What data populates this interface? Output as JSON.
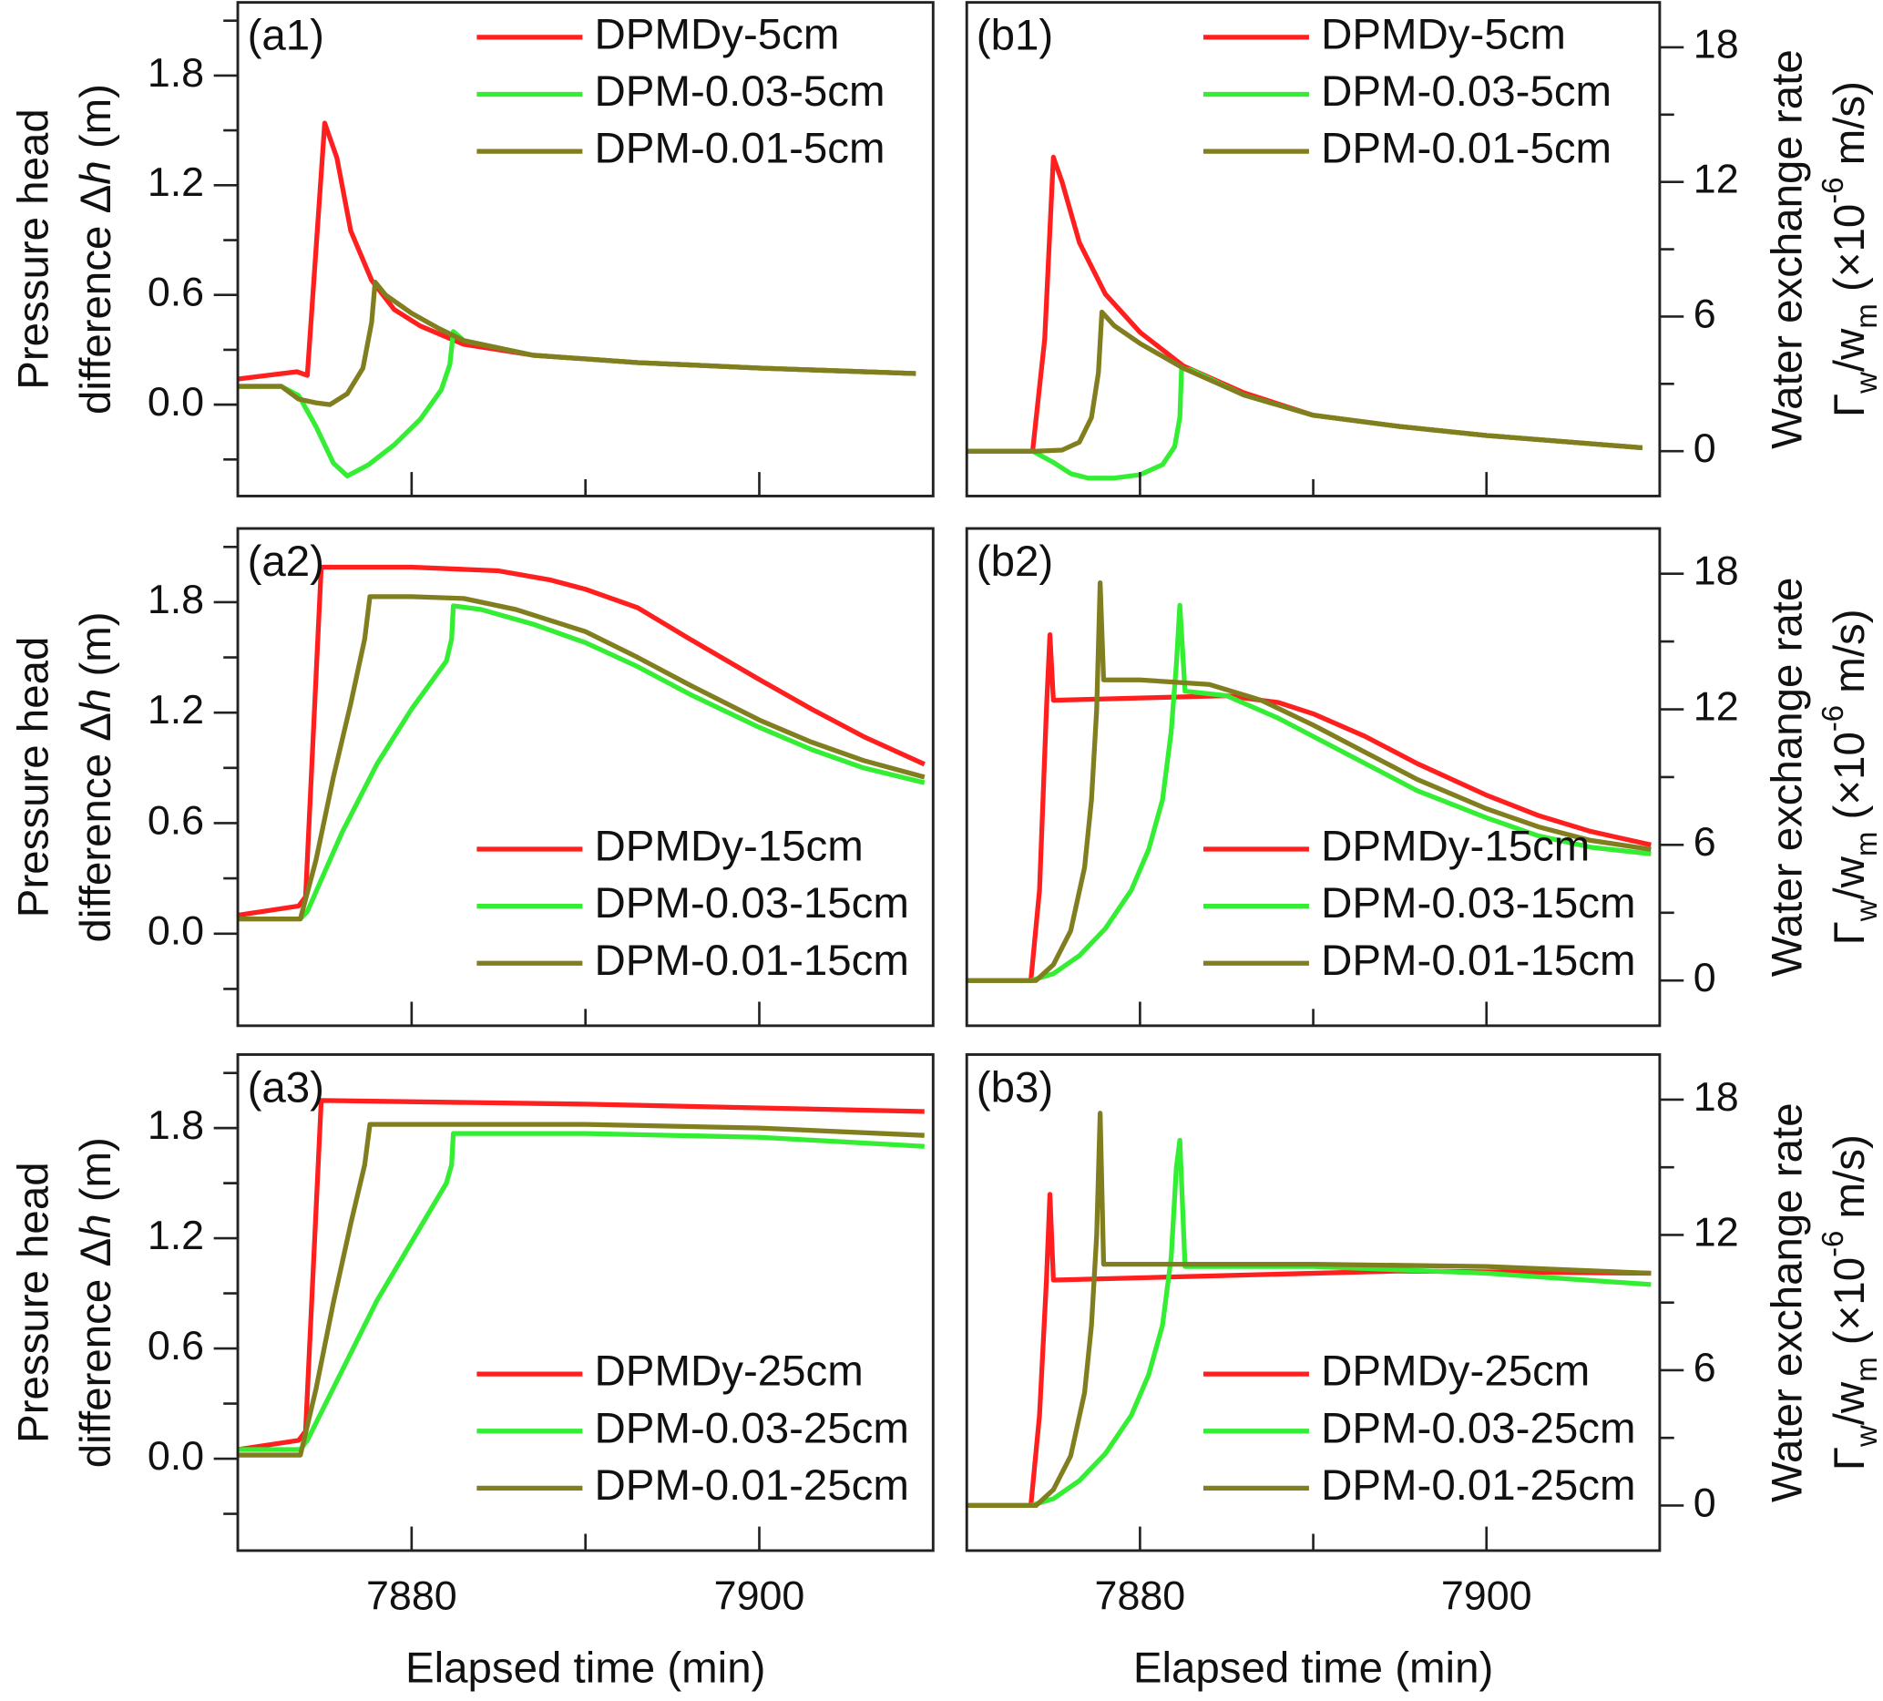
{
  "chart_data": [
    {
      "type": "line",
      "panel_label": "(a1)",
      "ylabel": [
        [
          {
            "text": "Pressure head"
          }
        ],
        [
          {
            "text": "difference Δ"
          },
          {
            "text": "h",
            "style": "italic"
          },
          {
            "text": " (m)"
          }
        ]
      ],
      "yaxis": "left",
      "xlim": [
        7870,
        7910
      ],
      "xticks": [
        7880,
        7900
      ],
      "xminor": [
        7890
      ],
      "xtick_labels": false,
      "ylim": [
        -0.5,
        2.2
      ],
      "yticks": [
        {
          "value": 0,
          "label": "0.0"
        },
        0.6,
        1.2,
        1.8
      ],
      "yminor": [
        -0.3,
        0.3,
        0.9,
        1.5,
        2.1
      ],
      "legend": "upper right",
      "series": [
        {
          "name": "DPMDy-5cm",
          "color": "#ff1f1f",
          "x": [
            7870,
            7873.4,
            7874,
            7875,
            7875.7,
            7876.5,
            7877.7,
            7879,
            7880.5,
            7883,
            7887,
            7893,
            7900,
            7909
          ],
          "values": [
            0.14,
            0.18,
            0.16,
            1.54,
            1.35,
            0.95,
            0.68,
            0.52,
            0.43,
            0.33,
            0.27,
            0.23,
            0.2,
            0.17
          ]
        },
        {
          "name": "DPM-0.03-5cm",
          "color": "#33ee33",
          "x": [
            7870,
            7872.5,
            7873.5,
            7874.5,
            7875.5,
            7876.3,
            7877.5,
            7879,
            7880.5,
            7881.7,
            7882.2,
            7882.4,
            7883,
            7887,
            7893,
            7900,
            7909
          ],
          "values": [
            0.1,
            0.1,
            0.05,
            -0.12,
            -0.32,
            -0.39,
            -0.33,
            -0.22,
            -0.08,
            0.08,
            0.22,
            0.4,
            0.35,
            0.27,
            0.23,
            0.2,
            0.17
          ]
        },
        {
          "name": "DPM-0.01-5cm",
          "color": "#807e1e",
          "x": [
            7870,
            7872.5,
            7873.5,
            7874.5,
            7875.3,
            7876.3,
            7877.2,
            7877.7,
            7877.9,
            7878.5,
            7880,
            7881.5,
            7883,
            7887,
            7893,
            7900,
            7909
          ],
          "values": [
            0.1,
            0.1,
            0.03,
            0.01,
            0.0,
            0.06,
            0.2,
            0.45,
            0.67,
            0.6,
            0.5,
            0.42,
            0.35,
            0.27,
            0.23,
            0.2,
            0.17
          ]
        }
      ]
    },
    {
      "type": "line",
      "panel_label": "(b1)",
      "ylabel": [
        [
          {
            "text": "Water exchange rate"
          }
        ],
        [
          {
            "text": "Γ"
          },
          {
            "text": "w",
            "style": "sub"
          },
          {
            "text": "/w"
          },
          {
            "text": "m",
            "style": "sub"
          },
          {
            "text": " (×10"
          },
          {
            "text": "-6",
            "style": "sup"
          },
          {
            "text": " m/s)"
          }
        ]
      ],
      "yaxis": "right",
      "xlim": [
        7870,
        7910
      ],
      "xticks": [
        7880,
        7900
      ],
      "xminor": [
        7890
      ],
      "xtick_labels": false,
      "ylim": [
        -2,
        20
      ],
      "yticks": [
        0,
        6,
        12,
        18
      ],
      "yminor": [
        3,
        9,
        15
      ],
      "legend": "upper right",
      "series": [
        {
          "name": "DPMDy-5cm",
          "color": "#ff1f1f",
          "x": [
            7870,
            7873.8,
            7874.5,
            7875,
            7875.5,
            7876.5,
            7878,
            7880,
            7882.5,
            7886,
            7890,
            7895,
            7900,
            7909
          ],
          "values": [
            0,
            0,
            5,
            13.1,
            12,
            9.3,
            7,
            5.3,
            3.8,
            2.6,
            1.6,
            1.1,
            0.7,
            0.15
          ]
        },
        {
          "name": "DPM-0.03-5cm",
          "color": "#33ee33",
          "x": [
            7870,
            7873.8,
            7875,
            7876,
            7877,
            7878.5,
            7880,
            7881.3,
            7882,
            7882.3,
            7882.4,
            7883,
            7886,
            7890,
            7895,
            7900,
            7909
          ],
          "values": [
            0,
            0,
            -0.5,
            -1.0,
            -1.2,
            -1.2,
            -1.05,
            -0.6,
            0.2,
            1.5,
            3.7,
            3.6,
            2.5,
            1.6,
            1.1,
            0.7,
            0.15
          ]
        },
        {
          "name": "DPM-0.01-5cm",
          "color": "#807e1e",
          "x": [
            7870,
            7874,
            7875.5,
            7876.5,
            7877.2,
            7877.6,
            7877.8,
            7878.5,
            7880,
            7882.5,
            7886,
            7890,
            7895,
            7900,
            7909
          ],
          "values": [
            0,
            0,
            0.05,
            0.4,
            1.5,
            3.5,
            6.2,
            5.6,
            4.8,
            3.7,
            2.5,
            1.6,
            1.1,
            0.7,
            0.15
          ]
        }
      ]
    },
    {
      "type": "line",
      "panel_label": "(a2)",
      "ylabel": [
        [
          {
            "text": "Pressure head"
          }
        ],
        [
          {
            "text": "difference Δ"
          },
          {
            "text": "h",
            "style": "italic"
          },
          {
            "text": " (m)"
          }
        ]
      ],
      "yaxis": "left",
      "xlim": [
        7870,
        7910
      ],
      "xticks": [
        7880,
        7900
      ],
      "xminor": [
        7890
      ],
      "xtick_labels": false,
      "ylim": [
        -0.5,
        2.2
      ],
      "yticks": [
        {
          "value": 0,
          "label": "0.0"
        },
        0.6,
        1.2,
        1.8
      ],
      "yminor": [
        -0.3,
        0.3,
        0.9,
        1.5,
        2.1
      ],
      "legend": "lower right",
      "series": [
        {
          "name": "DPMDy-15cm",
          "color": "#ff1f1f",
          "x": [
            7870,
            7873.5,
            7873.9,
            7874.8,
            7880,
            7885,
            7888,
            7890,
            7893,
            7896,
            7900,
            7903,
            7906,
            7909.5
          ],
          "values": [
            0.1,
            0.15,
            0.2,
            1.99,
            1.99,
            1.97,
            1.92,
            1.87,
            1.77,
            1.6,
            1.38,
            1.22,
            1.07,
            0.92
          ]
        },
        {
          "name": "DPM-0.03-15cm",
          "color": "#33ee33",
          "x": [
            7870,
            7873.6,
            7874,
            7876,
            7878,
            7880,
            7882,
            7882.3,
            7882.4,
            7884,
            7887,
            7890,
            7893,
            7896,
            7900,
            7903,
            7906,
            7909.5
          ],
          "values": [
            0.08,
            0.08,
            0.12,
            0.55,
            0.92,
            1.22,
            1.48,
            1.6,
            1.78,
            1.76,
            1.68,
            1.58,
            1.45,
            1.3,
            1.12,
            1.0,
            0.9,
            0.82
          ]
        },
        {
          "name": "DPM-0.01-15cm",
          "color": "#807e1e",
          "x": [
            7870,
            7873.6,
            7874.5,
            7875.5,
            7876.5,
            7877.3,
            7877.6,
            7880,
            7883,
            7886,
            7890,
            7893,
            7896,
            7900,
            7903,
            7906,
            7909.5
          ],
          "values": [
            0.08,
            0.08,
            0.4,
            0.85,
            1.25,
            1.6,
            1.83,
            1.83,
            1.82,
            1.76,
            1.64,
            1.5,
            1.35,
            1.16,
            1.04,
            0.94,
            0.85
          ]
        }
      ]
    },
    {
      "type": "line",
      "panel_label": "(b2)",
      "ylabel": [
        [
          {
            "text": "Water exchange rate"
          }
        ],
        [
          {
            "text": "Γ"
          },
          {
            "text": "w",
            "style": "sub"
          },
          {
            "text": "/w"
          },
          {
            "text": "m",
            "style": "sub"
          },
          {
            "text": " (×10"
          },
          {
            "text": "-6",
            "style": "sup"
          },
          {
            "text": " m/s)"
          }
        ]
      ],
      "yaxis": "right",
      "xlim": [
        7870,
        7910
      ],
      "xticks": [
        7880,
        7900
      ],
      "xminor": [
        7890
      ],
      "xtick_labels": false,
      "ylim": [
        -2,
        20
      ],
      "yticks": [
        0,
        6,
        12,
        18
      ],
      "yminor": [
        3,
        9,
        15
      ],
      "legend": "lower right",
      "series": [
        {
          "name": "DPMDy-15cm",
          "color": "#ff1f1f",
          "x": [
            7870,
            7873.7,
            7874.2,
            7874.6,
            7874.8,
            7875.0,
            7880,
            7885,
            7888,
            7890,
            7893,
            7896,
            7900,
            7903,
            7906,
            7909.5
          ],
          "values": [
            0,
            0,
            4,
            12,
            15.3,
            12.4,
            12.5,
            12.6,
            12.3,
            11.8,
            10.8,
            9.6,
            8.2,
            7.3,
            6.6,
            6.0
          ]
        },
        {
          "name": "DPM-0.03-15cm",
          "color": "#33ee33",
          "x": [
            7870,
            7873.7,
            7875,
            7876.5,
            7878,
            7879.5,
            7880.5,
            7881.3,
            7881.8,
            7882.1,
            7882.3,
            7882.6,
            7885,
            7888,
            7890,
            7893,
            7896,
            7900,
            7903,
            7906,
            7909.5
          ],
          "values": [
            0,
            0,
            0.3,
            1.1,
            2.3,
            4.0,
            5.8,
            8,
            11,
            14,
            16.6,
            12.8,
            12.6,
            11.6,
            10.8,
            9.6,
            8.4,
            7.2,
            6.4,
            5.9,
            5.6
          ]
        },
        {
          "name": "DPM-0.01-15cm",
          "color": "#807e1e",
          "x": [
            7870,
            7874,
            7875,
            7876,
            7876.8,
            7877.2,
            7877.5,
            7877.7,
            7877.9,
            7880,
            7884,
            7887,
            7890,
            7893,
            7896,
            7900,
            7903,
            7906,
            7909.5
          ],
          "values": [
            0,
            0,
            0.7,
            2.2,
            5,
            8,
            12,
            17.6,
            13.3,
            13.3,
            13.1,
            12.4,
            11.3,
            10.1,
            8.9,
            7.6,
            6.8,
            6.2,
            5.8
          ]
        }
      ]
    },
    {
      "type": "line",
      "panel_label": "(a3)",
      "ylabel": [
        [
          {
            "text": "Pressure head"
          }
        ],
        [
          {
            "text": "difference Δ"
          },
          {
            "text": "h",
            "style": "italic"
          },
          {
            "text": " (m)"
          }
        ]
      ],
      "xlabel": "Elapsed time (min)",
      "yaxis": "left",
      "xlim": [
        7870,
        7910
      ],
      "xticks": [
        7880,
        7900
      ],
      "xminor": [
        7890
      ],
      "xtick_labels": true,
      "ylim": [
        -0.5,
        2.2
      ],
      "yticks": [
        {
          "value": 0,
          "label": "0.0"
        },
        0.6,
        1.2,
        1.8
      ],
      "yminor": [
        -0.3,
        0.3,
        0.9,
        1.5,
        2.1
      ],
      "legend": "lower right",
      "series": [
        {
          "name": "DPMDy-25cm",
          "color": "#ff1f1f",
          "x": [
            7870,
            7873.5,
            7873.9,
            7874.8,
            7890,
            7909.5
          ],
          "values": [
            0.05,
            0.1,
            0.15,
            1.95,
            1.93,
            1.89
          ]
        },
        {
          "name": "DPM-0.03-25cm",
          "color": "#33ee33",
          "x": [
            7870,
            7873.6,
            7874,
            7876,
            7878,
            7880,
            7882,
            7882.3,
            7882.4,
            7890,
            7900,
            7909.5
          ],
          "values": [
            0.05,
            0.05,
            0.1,
            0.48,
            0.86,
            1.18,
            1.5,
            1.6,
            1.77,
            1.77,
            1.75,
            1.7
          ]
        },
        {
          "name": "DPM-0.01-25cm",
          "color": "#807e1e",
          "x": [
            7870,
            7873.6,
            7874.5,
            7875.5,
            7876.5,
            7877.3,
            7877.6,
            7890,
            7900,
            7909.5
          ],
          "values": [
            0.02,
            0.02,
            0.38,
            0.85,
            1.28,
            1.6,
            1.82,
            1.82,
            1.8,
            1.76
          ]
        }
      ]
    },
    {
      "type": "line",
      "panel_label": "(b3)",
      "ylabel": [
        [
          {
            "text": "Water exchange rate"
          }
        ],
        [
          {
            "text": "Γ"
          },
          {
            "text": "w",
            "style": "sub"
          },
          {
            "text": "/w"
          },
          {
            "text": "m",
            "style": "sub"
          },
          {
            "text": " (×10"
          },
          {
            "text": "-6",
            "style": "sup"
          },
          {
            "text": " m/s)"
          }
        ]
      ],
      "xlabel": "Elapsed time (min)",
      "yaxis": "right",
      "xlim": [
        7870,
        7910
      ],
      "xticks": [
        7880,
        7900
      ],
      "xminor": [
        7890
      ],
      "xtick_labels": true,
      "ylim": [
        -2,
        20
      ],
      "yticks": [
        0,
        6,
        12,
        18
      ],
      "yminor": [
        3,
        9,
        15
      ],
      "legend": "lower right",
      "series": [
        {
          "name": "DPMDy-25cm",
          "color": "#ff1f1f",
          "x": [
            7870,
            7873.7,
            7874.2,
            7874.6,
            7874.8,
            7875,
            7885,
            7895,
            7909.5
          ],
          "values": [
            0,
            0,
            4,
            10,
            13.8,
            10.0,
            10.2,
            10.4,
            10.3
          ]
        },
        {
          "name": "DPM-0.03-25cm",
          "color": "#33ee33",
          "x": [
            7870,
            7873.7,
            7875,
            7876.5,
            7878,
            7879.5,
            7880.5,
            7881.3,
            7881.8,
            7882.1,
            7882.3,
            7882.6,
            7890,
            7900,
            7909.5
          ],
          "values": [
            0,
            0,
            0.3,
            1.1,
            2.3,
            4.0,
            5.8,
            8,
            11,
            15,
            16.2,
            10.6,
            10.6,
            10.3,
            9.8
          ]
        },
        {
          "name": "DPM-0.01-25cm",
          "color": "#807e1e",
          "x": [
            7870,
            7874,
            7875,
            7876,
            7876.8,
            7877.2,
            7877.5,
            7877.7,
            7877.9,
            7890,
            7900,
            7909.5
          ],
          "values": [
            0,
            0,
            0.7,
            2.2,
            5,
            8,
            12,
            17.4,
            10.7,
            10.7,
            10.6,
            10.3
          ]
        }
      ]
    }
  ]
}
